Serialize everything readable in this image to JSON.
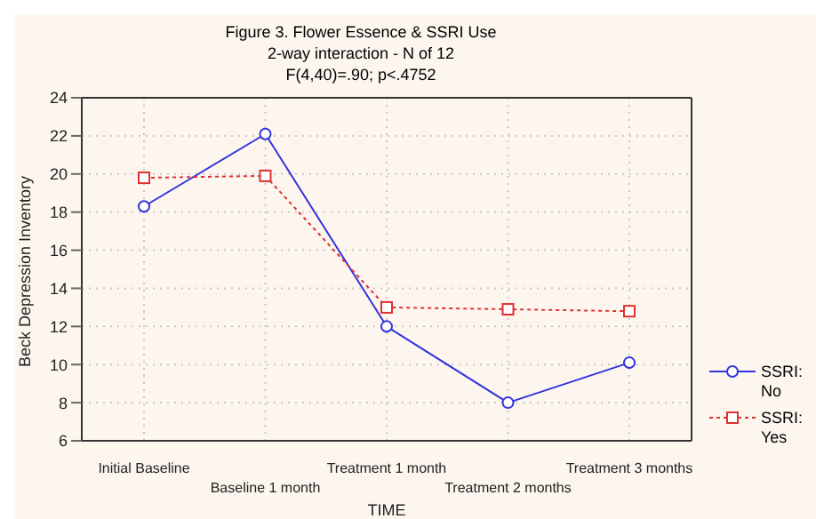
{
  "chart_data": {
    "type": "line",
    "title": "Figure 3. Flower Essence & SSRI Use",
    "subtitle": "2-way interaction - N of 12",
    "annotations": [
      "F(4,40)=.90; p<.4752"
    ],
    "xlabel": "TIME",
    "ylabel": "Beck Depression Inventory",
    "categories": [
      "Initial Baseline",
      "Baseline 1 month",
      "Treatment 1 month",
      "Treatment 2 months",
      "Treatment 3 months"
    ],
    "series": [
      {
        "name": "SSRI: No",
        "color": "#3333dd",
        "values": [
          18.3,
          22.1,
          12.0,
          8.0,
          10.1
        ],
        "marker": "circle",
        "line_style": "solid"
      },
      {
        "name": "SSRI: Yes",
        "color": "#e03030",
        "values": [
          19.8,
          19.9,
          13.0,
          12.9,
          12.8
        ],
        "marker": "square",
        "line_style": "dotted"
      }
    ],
    "ylim": [
      6,
      24
    ],
    "yticks": [
      6,
      8,
      10,
      12,
      14,
      16,
      18,
      20,
      22,
      24
    ],
    "grid": true,
    "legend": "right"
  }
}
